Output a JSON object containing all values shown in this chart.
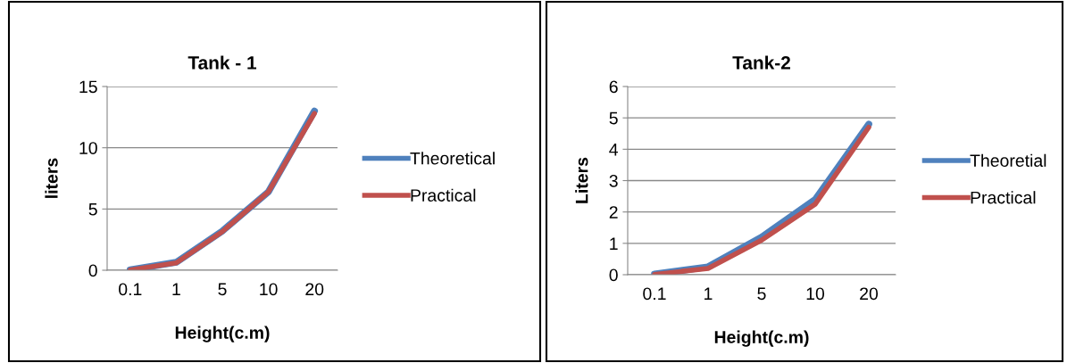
{
  "chart_data": [
    {
      "type": "line",
      "title": "Tank - 1",
      "xlabel": "Height(c.m)",
      "ylabel": "liters",
      "categories": [
        "0.1",
        "1",
        "5",
        "10",
        "20"
      ],
      "ylim": [
        0,
        15
      ],
      "yticks": [
        0,
        5,
        10,
        15
      ],
      "grid": "y",
      "legend": "right",
      "marker": "none",
      "series": [
        {
          "name": "Theoretical",
          "color": "#4f81bd",
          "values": [
            0.03,
            0.65,
            3.2,
            6.4,
            13.0
          ]
        },
        {
          "name": "Practical",
          "color": "#c0504d",
          "values": [
            0.02,
            0.6,
            3.15,
            6.4,
            12.8
          ]
        }
      ]
    },
    {
      "type": "line",
      "title": "Tank-2",
      "xlabel": "Height(c.m)",
      "ylabel": "Liters",
      "categories": [
        "0.1",
        "1",
        "5",
        "10",
        "20"
      ],
      "ylim": [
        0,
        6
      ],
      "yticks": [
        0,
        1,
        2,
        3,
        4,
        5,
        6
      ],
      "grid": "y",
      "legend": "right",
      "marker": "none",
      "series": [
        {
          "name": "Theoretial",
          "color": "#4f81bd",
          "values": [
            0.02,
            0.25,
            1.2,
            2.4,
            4.8
          ]
        },
        {
          "name": "Practical",
          "color": "#c0504d",
          "values": [
            0.01,
            0.2,
            1.1,
            2.25,
            4.7
          ]
        }
      ]
    }
  ]
}
